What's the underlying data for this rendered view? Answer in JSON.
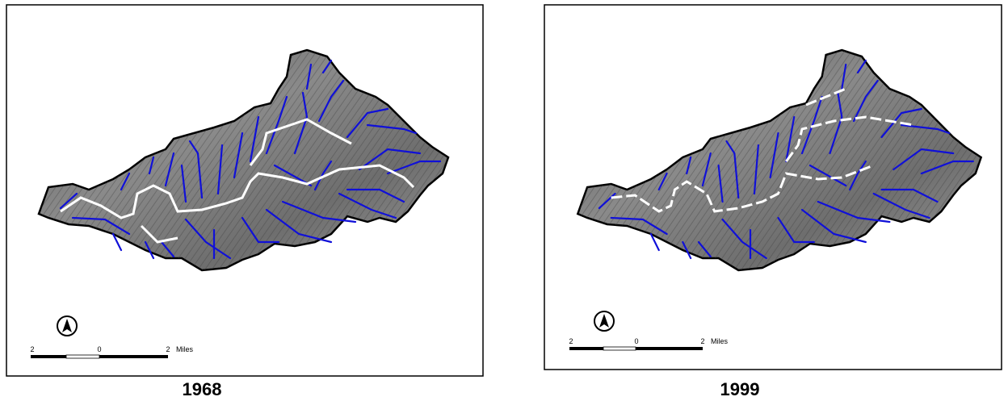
{
  "panels": [
    {
      "title": "1968",
      "scale_labels": [
        "2",
        "0",
        "2",
        "Miles"
      ]
    },
    {
      "title": "1999",
      "scale_labels": [
        "2",
        "0",
        "2",
        "Miles"
      ]
    }
  ]
}
